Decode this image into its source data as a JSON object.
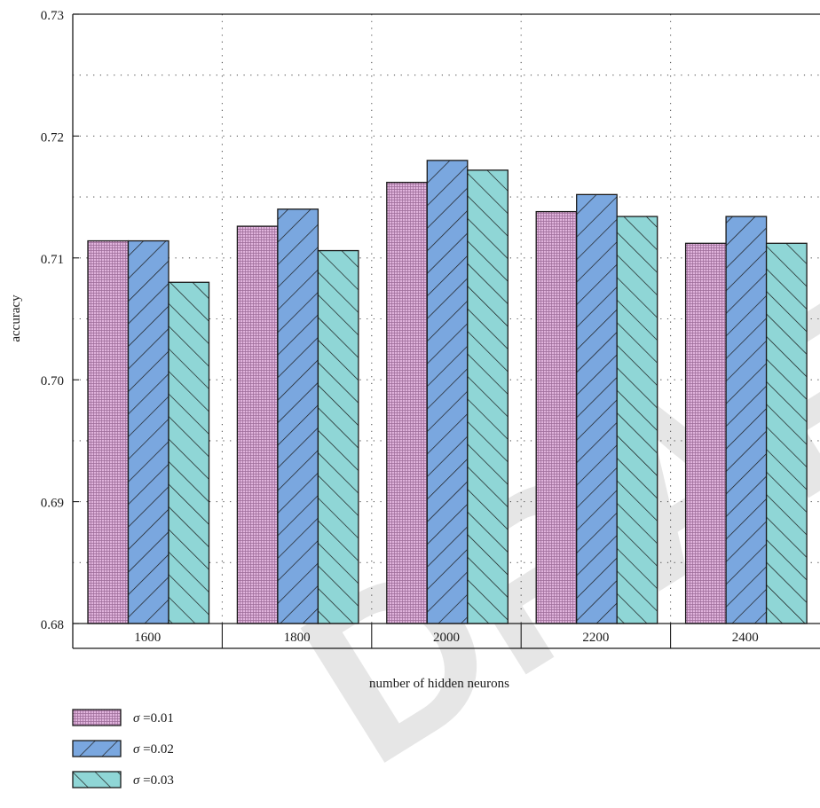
{
  "watermark": "DRAFT",
  "chart_data": {
    "type": "bar",
    "xlabel": "number of hidden neurons",
    "ylabel": "accuracy",
    "categories": [
      "1600",
      "1800",
      "2000",
      "2200",
      "2400"
    ],
    "ylim": [
      0.68,
      0.73
    ],
    "yticks": [
      "0.68",
      "0.69",
      "0.70",
      "0.71",
      "0.72",
      "0.73"
    ],
    "ytick_values": [
      0.68,
      0.69,
      0.7,
      0.71,
      0.72,
      0.73
    ],
    "grid": true,
    "legend_position": "bottom-left",
    "series": [
      {
        "name": "σ =0.01",
        "sigma_symbol": "σ",
        "sigma_value": "=0.01",
        "pattern": "grid",
        "color": "#d9a6d4",
        "values": [
          0.7114,
          0.7126,
          0.7162,
          0.7138,
          0.7112
        ]
      },
      {
        "name": "σ =0.02",
        "sigma_symbol": "σ",
        "sigma_value": "=0.02",
        "pattern": "forward-hatch",
        "color": "#7aa7df",
        "values": [
          0.7114,
          0.714,
          0.718,
          0.7152,
          0.7134
        ]
      },
      {
        "name": "σ =0.03",
        "sigma_symbol": "σ",
        "sigma_value": "=0.03",
        "pattern": "back-hatch",
        "color": "#8fd6d6",
        "values": [
          0.708,
          0.7106,
          0.7172,
          0.7134,
          0.7112
        ]
      }
    ]
  }
}
